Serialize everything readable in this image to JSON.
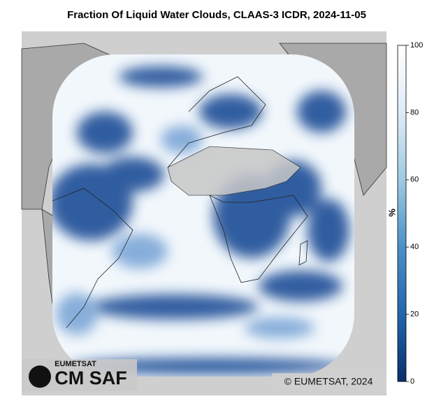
{
  "title": "Fraction Of Liquid Water Clouds, CLAAS-3 ICDR, 2024-11-05",
  "colorbar": {
    "label": "%",
    "lim": [
      0,
      100
    ],
    "ticks": [
      0,
      20,
      40,
      60,
      80,
      100
    ],
    "colors": [
      "#08306b",
      "#2166ac",
      "#4a90c8",
      "#9ecae1",
      "#deebf7",
      "#ffffff"
    ]
  },
  "logo": {
    "top": "EUMETSAT",
    "name": "CM SAF"
  },
  "copyright": "© EUMETSAT, 2024"
}
